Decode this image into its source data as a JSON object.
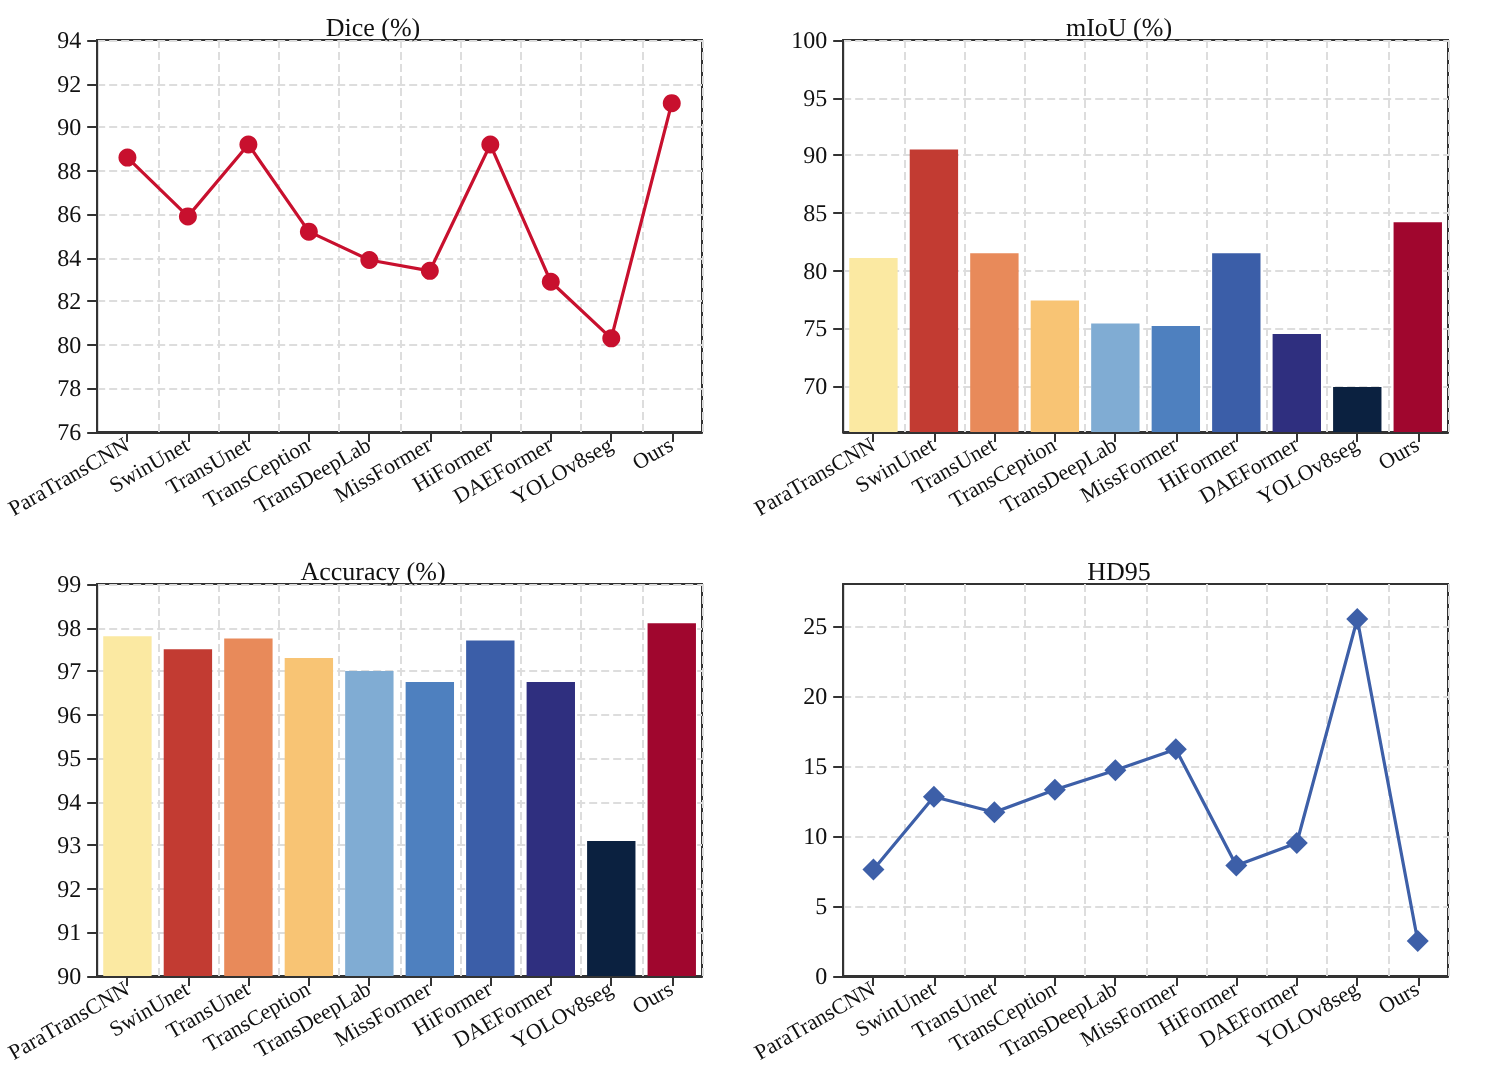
{
  "chart_data": [
    {
      "type": "line",
      "title": "Dice (%)",
      "categories": [
        "ParaTransCNN",
        "SwinUnet",
        "TransUnet",
        "TransCeption",
        "TransDeepLab",
        "MissFormer",
        "HiFormer",
        "DAEFormer",
        "YOLOv8seg",
        "Ours"
      ],
      "values": [
        88.6,
        85.9,
        89.2,
        85.2,
        83.9,
        83.4,
        89.2,
        82.9,
        80.3,
        91.1
      ],
      "color": "#c8102e",
      "marker": "circle",
      "ylim": [
        76,
        94
      ],
      "yticks": [
        76,
        78,
        80,
        82,
        84,
        86,
        88,
        90,
        92,
        94
      ],
      "grid": true
    },
    {
      "type": "bar",
      "title": "mIoU (%)",
      "categories": [
        "ParaTransCNN",
        "SwinUnet",
        "TransUnet",
        "TransCeption",
        "TransDeepLab",
        "MissFormer",
        "HiFormer",
        "DAEFormer",
        "YOLOv8seg",
        "Ours"
      ],
      "values": [
        81.1,
        90.5,
        81.5,
        77.4,
        75.4,
        75.2,
        81.5,
        74.5,
        69.9,
        84.2
      ],
      "colors": [
        "#fbe9a2",
        "#c23b32",
        "#e88a5a",
        "#f8c474",
        "#80acd3",
        "#4e80bf",
        "#3b5ea8",
        "#2f2f7f",
        "#0b2140",
        "#a0062e"
      ],
      "ylim": [
        66,
        100
      ],
      "yticks": [
        70,
        75,
        80,
        85,
        90,
        95,
        100
      ],
      "grid": true
    },
    {
      "type": "bar",
      "title": "Accuracy (%)",
      "categories": [
        "ParaTransCNN",
        "SwinUnet",
        "TransUnet",
        "TransCeption",
        "TransDeepLab",
        "MissFormer",
        "HiFormer",
        "DAEFormer",
        "YOLOv8seg",
        "Ours"
      ],
      "values": [
        97.8,
        97.5,
        97.75,
        97.3,
        97.0,
        96.75,
        97.7,
        96.75,
        93.1,
        98.1
      ],
      "colors": [
        "#fbe9a2",
        "#c23b32",
        "#e88a5a",
        "#f8c474",
        "#80acd3",
        "#4e80bf",
        "#3b5ea8",
        "#2f2f7f",
        "#0b2140",
        "#a0062e"
      ],
      "ylim": [
        90,
        99
      ],
      "yticks": [
        90,
        91,
        92,
        93,
        94,
        95,
        96,
        97,
        98,
        99
      ],
      "grid": true
    },
    {
      "type": "line",
      "title": "HD95",
      "categories": [
        "ParaTransCNN",
        "SwinUnet",
        "TransUnet",
        "TransCeption",
        "TransDeepLab",
        "MissFormer",
        "HiFormer",
        "DAEFormer",
        "YOLOv8seg",
        "Ours"
      ],
      "values": [
        7.6,
        12.8,
        11.7,
        13.3,
        14.7,
        16.2,
        7.9,
        9.5,
        25.5,
        2.5
      ],
      "color": "#3d5fa8",
      "marker": "diamond",
      "ylim": [
        0,
        28
      ],
      "yticks": [
        0,
        5,
        10,
        15,
        20,
        25
      ],
      "grid": true
    }
  ]
}
